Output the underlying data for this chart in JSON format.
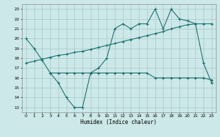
{
  "xlabel": "Humidex (Indice chaleur)",
  "bg_color": "#cce8e8",
  "grid_color": "#aacccc",
  "line_color": "#1a6b6b",
  "xlim": [
    -0.5,
    23.5
  ],
  "ylim": [
    12.5,
    23.5
  ],
  "yticks": [
    13,
    14,
    15,
    16,
    17,
    18,
    19,
    20,
    21,
    22,
    23
  ],
  "xticks": [
    0,
    1,
    2,
    3,
    4,
    5,
    6,
    7,
    8,
    9,
    10,
    11,
    12,
    13,
    14,
    15,
    16,
    17,
    18,
    19,
    20,
    21,
    22,
    23
  ],
  "line1_x": [
    0,
    1,
    2,
    3,
    4,
    5,
    6,
    7,
    8,
    9,
    10,
    11,
    12,
    13,
    14,
    15,
    16,
    17,
    18,
    19,
    20,
    21,
    22,
    23
  ],
  "line1_y": [
    20.0,
    19.0,
    17.8,
    16.5,
    15.5,
    14.0,
    13.0,
    13.0,
    16.5,
    17.0,
    18.0,
    21.0,
    21.5,
    21.0,
    21.5,
    21.5,
    23.0,
    21.0,
    23.0,
    22.0,
    21.8,
    21.5,
    17.5,
    15.5
  ],
  "line2_x": [
    0,
    1,
    2,
    3,
    4,
    5,
    6,
    7,
    8,
    9,
    10,
    11,
    12,
    13,
    14,
    15,
    16,
    17,
    18,
    19,
    20,
    21,
    22,
    23
  ],
  "line2_y": [
    17.5,
    17.7,
    17.9,
    18.1,
    18.3,
    18.4,
    18.6,
    18.7,
    18.9,
    19.1,
    19.3,
    19.5,
    19.7,
    19.9,
    20.1,
    20.3,
    20.5,
    20.7,
    21.0,
    21.2,
    21.4,
    21.5,
    21.5,
    21.5
  ],
  "line3_x": [
    3,
    4,
    5,
    6,
    7,
    8,
    9,
    10,
    11,
    12,
    13,
    14,
    15,
    16,
    17,
    18,
    19,
    20,
    21,
    22,
    23
  ],
  "line3_y": [
    16.5,
    16.5,
    16.5,
    16.5,
    16.5,
    16.5,
    16.5,
    16.5,
    16.5,
    16.5,
    16.5,
    16.5,
    16.5,
    16.0,
    16.0,
    16.0,
    16.0,
    16.0,
    16.0,
    16.0,
    15.8
  ]
}
